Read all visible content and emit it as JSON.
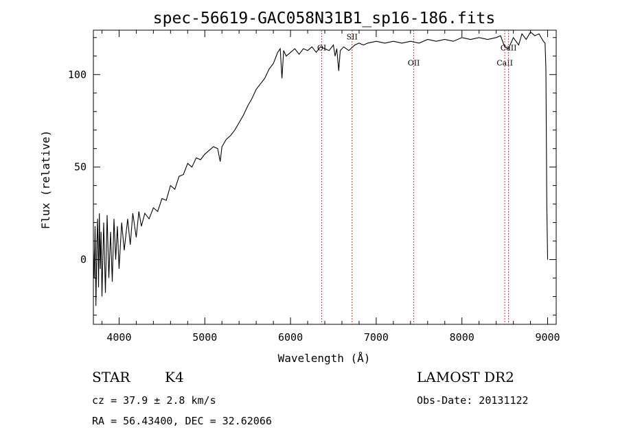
{
  "chart_data": {
    "type": "line",
    "title": "spec-56619-GAC058N31B1_sp16-186.fits",
    "xlabel": "Wavelength (Å)",
    "ylabel": "Flux (relative)",
    "xlim": [
      3700,
      9100
    ],
    "ylim": [
      -35,
      124
    ],
    "x_ticks": [
      4000,
      5000,
      6000,
      7000,
      8000,
      9000
    ],
    "y_ticks": [
      0,
      50,
      100
    ],
    "x_minor_step": 200,
    "y_minor_step": 10,
    "grid": false,
    "line_color": "#000000",
    "marker_color": "#c0392b",
    "spectral_lines": [
      {
        "label": "OI",
        "x": 6364,
        "label_y": 113
      },
      {
        "label": "SII",
        "x": 6718,
        "label_y": 119
      },
      {
        "label": "OII",
        "x": 7438,
        "label_y": 105
      },
      {
        "label": "CaII",
        "x": 8500,
        "label_y": 105
      },
      {
        "label": "CaII",
        "x": 8544,
        "label_y": 113
      }
    ],
    "series": [
      {
        "values": [
          [
            3700,
            5
          ],
          [
            3710,
            -10
          ],
          [
            3720,
            18
          ],
          [
            3730,
            -25
          ],
          [
            3740,
            8
          ],
          [
            3750,
            22
          ],
          [
            3760,
            -15
          ],
          [
            3770,
            25
          ],
          [
            3780,
            -5
          ],
          [
            3790,
            15
          ],
          [
            3800,
            -20
          ],
          [
            3820,
            20
          ],
          [
            3840,
            -18
          ],
          [
            3860,
            24
          ],
          [
            3880,
            -10
          ],
          [
            3900,
            15
          ],
          [
            3920,
            -12
          ],
          [
            3940,
            22
          ],
          [
            3960,
            0
          ],
          [
            3980,
            18
          ],
          [
            4000,
            -5
          ],
          [
            4030,
            20
          ],
          [
            4060,
            5
          ],
          [
            4100,
            22
          ],
          [
            4130,
            8
          ],
          [
            4160,
            25
          ],
          [
            4200,
            12
          ],
          [
            4230,
            26
          ],
          [
            4260,
            18
          ],
          [
            4300,
            25
          ],
          [
            4350,
            22
          ],
          [
            4400,
            28
          ],
          [
            4450,
            26
          ],
          [
            4500,
            33
          ],
          [
            4550,
            32
          ],
          [
            4600,
            40
          ],
          [
            4650,
            38
          ],
          [
            4700,
            45
          ],
          [
            4750,
            46
          ],
          [
            4800,
            52
          ],
          [
            4850,
            50
          ],
          [
            4900,
            55
          ],
          [
            4950,
            54
          ],
          [
            5000,
            57
          ],
          [
            5050,
            59
          ],
          [
            5100,
            61
          ],
          [
            5150,
            60
          ],
          [
            5180,
            53
          ],
          [
            5200,
            61
          ],
          [
            5250,
            65
          ],
          [
            5300,
            67
          ],
          [
            5350,
            70
          ],
          [
            5400,
            74
          ],
          [
            5450,
            78
          ],
          [
            5500,
            83
          ],
          [
            5550,
            87
          ],
          [
            5600,
            92
          ],
          [
            5650,
            95
          ],
          [
            5700,
            98
          ],
          [
            5750,
            103
          ],
          [
            5800,
            106
          ],
          [
            5850,
            112
          ],
          [
            5880,
            114
          ],
          [
            5900,
            98
          ],
          [
            5920,
            113
          ],
          [
            5950,
            110
          ],
          [
            6000,
            112
          ],
          [
            6050,
            114
          ],
          [
            6100,
            111
          ],
          [
            6150,
            114
          ],
          [
            6200,
            113
          ],
          [
            6250,
            115
          ],
          [
            6300,
            112
          ],
          [
            6350,
            115
          ],
          [
            6400,
            114
          ],
          [
            6450,
            113
          ],
          [
            6500,
            116
          ],
          [
            6520,
            110
          ],
          [
            6540,
            114
          ],
          [
            6563,
            102
          ],
          [
            6580,
            113
          ],
          [
            6620,
            115
          ],
          [
            6680,
            113
          ],
          [
            6750,
            116
          ],
          [
            6800,
            117
          ],
          [
            6850,
            116
          ],
          [
            6900,
            117
          ],
          [
            7000,
            118
          ],
          [
            7100,
            117
          ],
          [
            7200,
            118
          ],
          [
            7300,
            117
          ],
          [
            7400,
            118
          ],
          [
            7500,
            117
          ],
          [
            7600,
            119
          ],
          [
            7700,
            118
          ],
          [
            7800,
            119
          ],
          [
            7900,
            118
          ],
          [
            8000,
            120
          ],
          [
            8100,
            119
          ],
          [
            8200,
            120
          ],
          [
            8300,
            119
          ],
          [
            8400,
            120
          ],
          [
            8450,
            121
          ],
          [
            8500,
            115
          ],
          [
            8542,
            114
          ],
          [
            8600,
            120
          ],
          [
            8662,
            116
          ],
          [
            8700,
            122
          ],
          [
            8750,
            119
          ],
          [
            8800,
            123
          ],
          [
            8850,
            121
          ],
          [
            8900,
            122
          ],
          [
            8950,
            118
          ],
          [
            8970,
            117
          ],
          [
            8980,
            103
          ],
          [
            8990,
            30
          ],
          [
            9000,
            0
          ]
        ]
      }
    ]
  },
  "info": {
    "object_class": "STAR",
    "subclass": "K4",
    "redshift": "cz = 37.9 ± 2.8 km/s",
    "coords": "RA =  56.43400, DEC =  32.62066",
    "survey": "LAMOST DR2",
    "obs_date": "Obs-Date: 20131122"
  }
}
